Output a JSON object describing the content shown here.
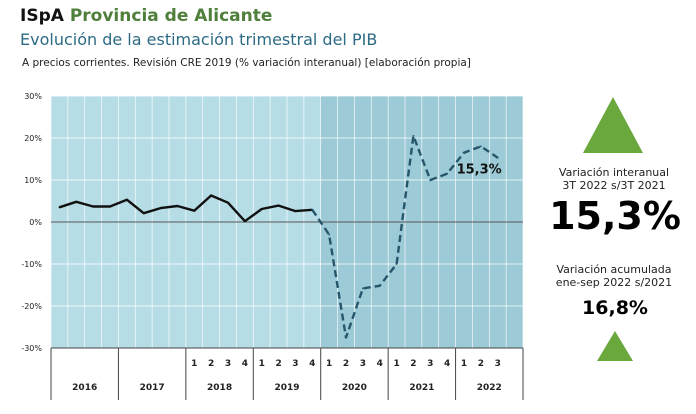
{
  "header": {
    "brand_abbr": "ISpA",
    "brand_name": "Provincia de Alicante",
    "title": "Evolución de la estimación trimestral del PIB",
    "subtitle": "A precios corrientes. Revisión CRE 2019 (% variación interanual) [elaboración propia]"
  },
  "kpis": {
    "quarterly_label_1": "Variación interanual",
    "quarterly_label_2": "3T 2022 s/3T 2021",
    "quarterly_value": "15,3%",
    "cumulative_label_1": "Variación acumulada",
    "cumulative_label_2": "ene-sep 2022 s/2021",
    "cumulative_value": "16,8%",
    "trend": "up"
  },
  "colors": {
    "plot_bg": "#b6dde6",
    "shaded_bg": "#9ccad6",
    "line": "#111111",
    "dashed_line": "#25566b",
    "triangle": "#6aa83e",
    "brand": "#4f7f3a",
    "title": "#2d6a84"
  },
  "chart_data": {
    "type": "line",
    "title": "Evolución de la estimación trimestral del PIB",
    "ylim": [
      -30,
      30
    ],
    "y_ticks": [
      "30%",
      "20%",
      "10%",
      "0%",
      "-10%",
      "-20%",
      "-30%"
    ],
    "grid": true,
    "years": [
      "2016",
      "2017",
      "2018",
      "2019",
      "2020",
      "2021",
      "2022"
    ],
    "quarter_labels": [
      "1",
      "2",
      "3",
      "4"
    ],
    "shaded_from_year": "2020",
    "series": [
      {
        "style": "solid",
        "values": [
          3.5,
          4.8,
          3.7,
          3.7,
          5.3,
          2.1,
          3.3,
          3.8,
          2.7,
          6.3,
          4.6,
          0.2,
          3.1,
          3.9,
          2.6,
          2.9
        ]
      },
      {
        "style": "dashed",
        "start_index": 15,
        "values": [
          2.9,
          -3.0,
          -27.5,
          -15.8,
          -15.2,
          -10.0,
          20.5,
          10.0,
          11.5,
          16.5,
          18.0,
          15.3
        ]
      }
    ],
    "last_value_label": "15,3%"
  }
}
